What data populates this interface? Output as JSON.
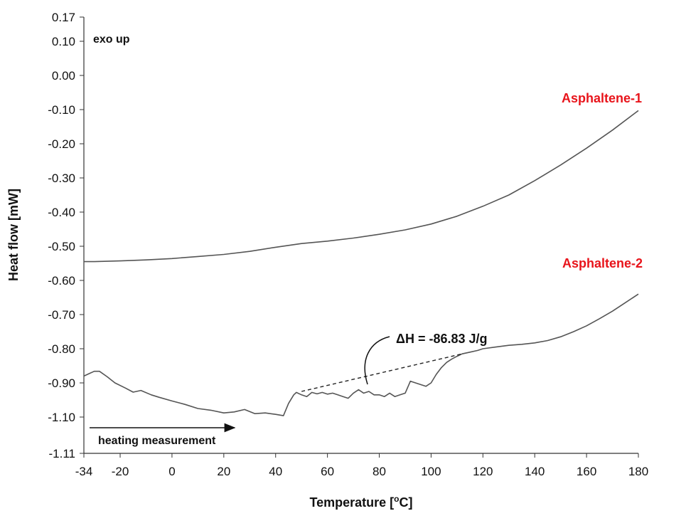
{
  "chart_data": {
    "type": "line",
    "title": "",
    "xlabel": "Temperature [",
    "xlabel_sup": "o",
    "xlabel_end": "C]",
    "ylabel": "Heat flow [mW]",
    "xlim": [
      -34,
      180
    ],
    "x_ticks": [
      -34,
      -20,
      0,
      20,
      40,
      60,
      80,
      100,
      120,
      140,
      160,
      180
    ],
    "y_tick_labels": [
      "0.17",
      "0.10",
      "0.00",
      "-0.10",
      "-0.20",
      "-0.30",
      "-0.40",
      "-0.50",
      "-0.60",
      "-0.70",
      "-0.80",
      "-0.90",
      "-1.10",
      "-1.11"
    ],
    "grid": false,
    "series": [
      {
        "name": "Asphaltene-1",
        "label_color": "#e8141b",
        "line_color": "#555555",
        "x": [
          -34,
          -30,
          -20,
          -10,
          0,
          10,
          20,
          30,
          40,
          50,
          60,
          70,
          80,
          90,
          100,
          110,
          120,
          130,
          140,
          150,
          160,
          170,
          180
        ],
        "y": [
          -0.545,
          -0.545,
          -0.543,
          -0.54,
          -0.536,
          -0.53,
          -0.524,
          -0.515,
          -0.503,
          -0.492,
          -0.485,
          -0.476,
          -0.465,
          -0.452,
          -0.435,
          -0.412,
          -0.383,
          -0.35,
          -0.308,
          -0.262,
          -0.213,
          -0.16,
          -0.103
        ]
      },
      {
        "name": "Asphaltene-2",
        "label_color": "#e8141b",
        "line_color": "#555555",
        "x": [
          -34,
          -32,
          -30,
          -28,
          -25,
          -22,
          -18,
          -15,
          -12,
          -8,
          -5,
          0,
          5,
          10,
          15,
          20,
          24,
          28,
          32,
          36,
          40,
          43,
          45,
          47,
          48,
          50,
          52,
          54,
          56,
          58,
          60,
          62,
          64,
          66,
          68,
          70,
          72,
          74,
          76,
          78,
          80,
          82,
          84,
          86,
          88,
          90,
          92,
          94,
          96,
          98,
          100,
          102,
          104,
          106,
          108,
          110,
          112,
          115,
          118,
          120,
          125,
          130,
          135,
          140,
          145,
          150,
          155,
          160,
          165,
          170,
          175,
          180
        ],
        "y": [
          -0.88,
          -0.873,
          -0.866,
          -0.866,
          -0.882,
          -0.9,
          -0.915,
          -0.927,
          -0.922,
          -0.935,
          -0.942,
          -0.953,
          -0.963,
          -0.975,
          -0.98,
          -0.988,
          -0.985,
          -0.978,
          -0.99,
          -0.988,
          -0.992,
          -0.996,
          -0.96,
          -0.935,
          -0.928,
          -0.935,
          -0.94,
          -0.928,
          -0.932,
          -0.928,
          -0.933,
          -0.93,
          -0.935,
          -0.94,
          -0.945,
          -0.93,
          -0.92,
          -0.93,
          -0.925,
          -0.935,
          -0.935,
          -0.94,
          -0.93,
          -0.94,
          -0.935,
          -0.93,
          -0.895,
          -0.9,
          -0.905,
          -0.91,
          -0.9,
          -0.875,
          -0.855,
          -0.84,
          -0.83,
          -0.822,
          -0.815,
          -0.81,
          -0.805,
          -0.8,
          -0.795,
          -0.79,
          -0.787,
          -0.783,
          -0.776,
          -0.765,
          -0.75,
          -0.733,
          -0.712,
          -0.69,
          -0.665,
          -0.64
        ]
      }
    ],
    "baseline_dashed": {
      "x": [
        50,
        112
      ],
      "y": [
        -0.925,
        -0.815
      ]
    },
    "annotations": {
      "exo": "exo up",
      "delta_h": "ΔH = -86.83 J/g",
      "heating": "heating measurement"
    }
  }
}
